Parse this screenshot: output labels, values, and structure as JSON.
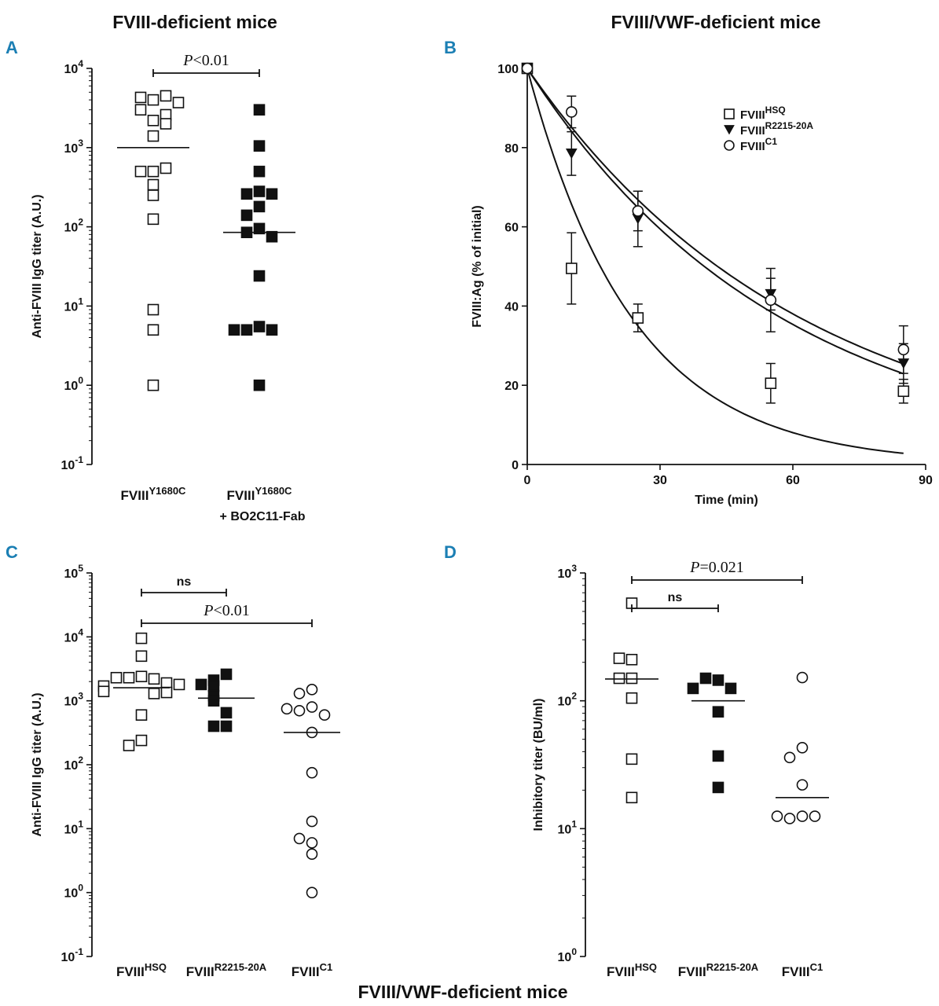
{
  "titles": {
    "left": "FVIII-deficient mice",
    "right": "FVIII/VWF-deficient mice",
    "bottom": "FVIII/VWF-deficient mice"
  },
  "chart_data": [
    {
      "panel": "A",
      "type": "scatter",
      "ylabel": "Anti-FVIII IgG titer (A.U.)",
      "yscale": "log",
      "ylim": [
        0.1,
        10000
      ],
      "yticks": [
        {
          "value": 0.1,
          "base": "10",
          "exp": "-1"
        },
        {
          "value": 1,
          "base": "10",
          "exp": "0"
        },
        {
          "value": 10,
          "base": "10",
          "exp": "1"
        },
        {
          "value": 100,
          "base": "10",
          "exp": "2"
        },
        {
          "value": 1000,
          "base": "10",
          "exp": "3"
        },
        {
          "value": 10000,
          "base": "10",
          "exp": "4"
        }
      ],
      "groups": [
        {
          "base": "FVIII",
          "sup": "Y1680C",
          "line2": "",
          "marker": "open-square",
          "median": 1000,
          "values": [
            4000,
            4300,
            3000,
            4500,
            3700,
            2200,
            2600,
            2000,
            1400,
            500,
            500,
            550,
            340,
            250,
            125,
            9,
            5,
            1
          ]
        },
        {
          "base": "FVIII",
          "sup": "Y1680C",
          "line2": "+ BO2C11-Fab",
          "marker": "filled-square",
          "median": 85,
          "values": [
            3000,
            1050,
            500,
            280,
            260,
            260,
            180,
            140,
            95,
            85,
            75,
            24,
            5.5,
            5,
            5,
            5,
            1
          ]
        }
      ],
      "comparisons": [
        {
          "from": 0,
          "to": 1,
          "label_pre": "P",
          "label_post": "<0.01"
        }
      ]
    },
    {
      "panel": "B",
      "type": "line",
      "xlabel": "Time (min)",
      "ylabel": "FVIII:Ag (% of initial)",
      "xlim": [
        0,
        90
      ],
      "ylim": [
        0,
        100
      ],
      "xticks": [
        "0",
        "30",
        "60",
        "90"
      ],
      "yticks": [
        "0",
        "20",
        "40",
        "60",
        "80",
        "100"
      ],
      "series": [
        {
          "base": "FVIII",
          "sup": "HSQ",
          "marker": "open-square",
          "half_life": 16.5,
          "x": [
            0,
            10,
            25,
            55,
            85
          ],
          "y": [
            100,
            49.5,
            37,
            20.5,
            18.5
          ],
          "err": [
            0,
            9,
            3.5,
            5,
            3
          ]
        },
        {
          "base": "FVIII",
          "sup": "R2215-20A",
          "marker": "filled-triangle-down",
          "half_life": 40,
          "x": [
            0,
            10,
            25,
            55,
            85
          ],
          "y": [
            100,
            78.5,
            62,
            43,
            25.5
          ],
          "err": [
            0,
            5.5,
            7,
            4,
            5
          ]
        },
        {
          "base": "FVIII",
          "sup": "C1",
          "marker": "open-circle",
          "half_life": 43,
          "x": [
            0,
            10,
            25,
            55,
            85
          ],
          "y": [
            100,
            89,
            64,
            41.5,
            29
          ],
          "err": [
            0,
            4,
            5,
            8,
            6
          ]
        }
      ]
    },
    {
      "panel": "C",
      "type": "scatter",
      "ylabel": "Anti-FVIII IgG titer (A.U.)",
      "yscale": "log",
      "ylim": [
        0.1,
        100000
      ],
      "yticks": [
        {
          "value": 0.1,
          "base": "10",
          "exp": "-1"
        },
        {
          "value": 1,
          "base": "10",
          "exp": "0"
        },
        {
          "value": 10,
          "base": "10",
          "exp": "1"
        },
        {
          "value": 100,
          "base": "10",
          "exp": "2"
        },
        {
          "value": 1000,
          "base": "10",
          "exp": "3"
        },
        {
          "value": 10000,
          "base": "10",
          "exp": "4"
        },
        {
          "value": 100000,
          "base": "10",
          "exp": "5"
        }
      ],
      "groups": [
        {
          "base": "FVIII",
          "sup": "HSQ",
          "line2": "",
          "marker": "open-square",
          "median": 1600,
          "values": [
            9500,
            5000,
            2400,
            2300,
            2200,
            2300,
            1900,
            1700,
            1800,
            1300,
            1350,
            1400,
            600,
            240,
            200
          ]
        },
        {
          "base": "FVIII",
          "sup": "R2215-20A",
          "line2": "",
          "marker": "filled-square",
          "median": 1100,
          "values": [
            2600,
            2100,
            1700,
            1800,
            1200,
            1000,
            650,
            400,
            400
          ]
        },
        {
          "base": "FVIII",
          "sup": "C1",
          "line2": "",
          "marker": "open-circle",
          "median": 320,
          "values": [
            1500,
            1300,
            800,
            700,
            600,
            750,
            320,
            75,
            13,
            6,
            7,
            4,
            1
          ]
        }
      ],
      "comparisons": [
        {
          "from": 0,
          "to": 1,
          "label_pre": "ns",
          "label_post": ""
        },
        {
          "from": 0,
          "to": 2,
          "label_pre": "P",
          "label_post": "<0.01"
        }
      ]
    },
    {
      "panel": "D",
      "type": "scatter",
      "ylabel": "Inhibitory titer (BU/ml)",
      "yscale": "log",
      "ylim": [
        1,
        1000
      ],
      "yticks": [
        {
          "value": 1,
          "base": "10",
          "exp": "0"
        },
        {
          "value": 10,
          "base": "10",
          "exp": "1"
        },
        {
          "value": 100,
          "base": "10",
          "exp": "2"
        },
        {
          "value": 1000,
          "base": "10",
          "exp": "3"
        }
      ],
      "groups": [
        {
          "base": "FVIII",
          "sup": "HSQ",
          "line2": "",
          "marker": "open-square",
          "median": 148,
          "values": [
            580,
            210,
            215,
            150,
            150,
            105,
            35,
            17.5
          ]
        },
        {
          "base": "FVIII",
          "sup": "R2215-20A",
          "line2": "",
          "marker": "filled-square",
          "median": 100,
          "values": [
            145,
            150,
            125,
            125,
            82,
            37,
            21
          ]
        },
        {
          "base": "FVIII",
          "sup": "C1",
          "line2": "",
          "marker": "open-circle",
          "median": 17.5,
          "values": [
            152,
            43,
            36,
            22,
            12.5,
            12,
            12.5,
            12.5
          ]
        }
      ],
      "comparisons": [
        {
          "from": 0,
          "to": 1,
          "label_pre": "ns",
          "label_post": ""
        },
        {
          "from": 0,
          "to": 2,
          "label_pre": "P",
          "label_post": "=0.021"
        }
      ]
    }
  ],
  "panel_labels": [
    "A",
    "B",
    "C",
    "D"
  ],
  "colors": {
    "ink": "#111111",
    "label": "#1b7fb4",
    "background": "#ffffff"
  }
}
